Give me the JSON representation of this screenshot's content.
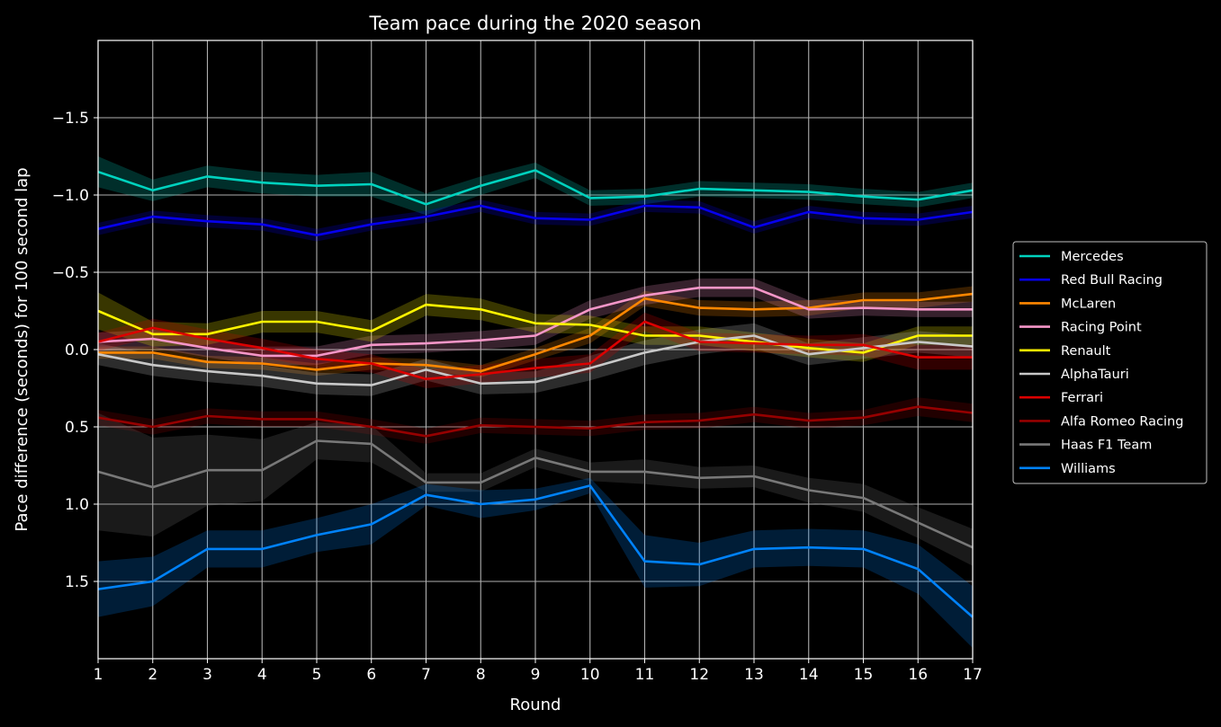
{
  "chart_data": {
    "type": "line",
    "title": "Team pace during the 2020 season",
    "xlabel": "Round",
    "ylabel": "Pace difference (seconds) for 100 second lap",
    "x": [
      1,
      2,
      3,
      4,
      5,
      6,
      7,
      8,
      9,
      10,
      11,
      12,
      13,
      14,
      15,
      16,
      17
    ],
    "xlim": [
      1,
      17
    ],
    "ylim": [
      2.0,
      -2.0
    ],
    "y_inverted": true,
    "yticks": [
      -1.5,
      -1.0,
      -0.5,
      0.0,
      0.5,
      1.0,
      1.5
    ],
    "ytick_labels": [
      "−1.5",
      "−1.0",
      "−0.5",
      "0.0",
      "0.5",
      "1.0",
      "1.5"
    ],
    "grid": true,
    "legend_position": "right",
    "background": "#000000",
    "series": [
      {
        "name": "Mercedes",
        "color": "#00D2BE",
        "values": [
          -1.15,
          -1.03,
          -1.12,
          -1.08,
          -1.06,
          -1.07,
          -0.94,
          -1.06,
          -1.16,
          -0.98,
          -0.99,
          -1.04,
          -1.03,
          -1.02,
          -0.99,
          -0.97,
          -1.03
        ],
        "band": [
          0.1,
          0.07,
          0.07,
          0.07,
          0.07,
          0.08,
          0.07,
          0.06,
          0.05,
          0.05,
          0.05,
          0.05,
          0.05,
          0.05,
          0.05,
          0.05,
          0.05
        ]
      },
      {
        "name": "Red Bull Racing",
        "color": "#0600EF",
        "values": [
          -0.78,
          -0.86,
          -0.83,
          -0.81,
          -0.74,
          -0.81,
          -0.86,
          -0.93,
          -0.85,
          -0.84,
          -0.93,
          -0.92,
          -0.79,
          -0.89,
          -0.85,
          -0.84,
          -0.89
        ],
        "band": [
          0.04,
          0.04,
          0.04,
          0.04,
          0.04,
          0.04,
          0.04,
          0.04,
          0.04,
          0.04,
          0.04,
          0.04,
          0.04,
          0.04,
          0.04,
          0.04,
          0.04
        ]
      },
      {
        "name": "McLaren",
        "color": "#FF8700",
        "values": [
          0.02,
          0.02,
          0.08,
          0.09,
          0.13,
          0.09,
          0.1,
          0.14,
          0.03,
          -0.09,
          -0.33,
          -0.27,
          -0.26,
          -0.27,
          -0.32,
          -0.32,
          -0.36
        ],
        "band": [
          0.04,
          0.04,
          0.04,
          0.04,
          0.04,
          0.04,
          0.04,
          0.04,
          0.04,
          0.05,
          0.05,
          0.05,
          0.05,
          0.05,
          0.05,
          0.05,
          0.05
        ]
      },
      {
        "name": "Racing Point",
        "color": "#F596C8",
        "values": [
          -0.05,
          -0.07,
          -0.01,
          0.04,
          0.04,
          -0.03,
          -0.04,
          -0.06,
          -0.09,
          -0.26,
          -0.35,
          -0.4,
          -0.4,
          -0.26,
          -0.27,
          -0.26,
          -0.26
        ],
        "band": [
          0.06,
          0.06,
          0.06,
          0.06,
          0.06,
          0.06,
          0.06,
          0.06,
          0.06,
          0.06,
          0.06,
          0.06,
          0.06,
          0.06,
          0.05,
          0.05,
          0.05
        ]
      },
      {
        "name": "Renault",
        "color": "#FFF500",
        "values": [
          -0.25,
          -0.1,
          -0.1,
          -0.18,
          -0.18,
          -0.12,
          -0.29,
          -0.26,
          -0.17,
          -0.16,
          -0.09,
          -0.09,
          -0.05,
          -0.01,
          0.02,
          -0.09,
          -0.09
        ],
        "band": [
          0.12,
          0.08,
          0.07,
          0.07,
          0.07,
          0.07,
          0.07,
          0.07,
          0.06,
          0.06,
          0.06,
          0.06,
          0.06,
          0.06,
          0.06,
          0.06,
          0.06
        ]
      },
      {
        "name": "AlphaTauri",
        "color": "#C8C8C8",
        "values": [
          0.03,
          0.1,
          0.14,
          0.17,
          0.22,
          0.23,
          0.13,
          0.22,
          0.21,
          0.12,
          0.02,
          -0.05,
          -0.09,
          0.03,
          -0.01,
          -0.05,
          -0.02
        ],
        "band": [
          0.07,
          0.07,
          0.07,
          0.07,
          0.07,
          0.07,
          0.07,
          0.07,
          0.07,
          0.08,
          0.08,
          0.08,
          0.08,
          0.07,
          0.07,
          0.07,
          0.07
        ]
      },
      {
        "name": "Ferrari",
        "color": "#DC0000",
        "values": [
          -0.05,
          -0.14,
          -0.07,
          -0.01,
          0.06,
          0.09,
          0.19,
          0.16,
          0.12,
          0.09,
          -0.18,
          -0.05,
          -0.04,
          -0.03,
          -0.03,
          0.05,
          0.05
        ],
        "band": [
          0.06,
          0.06,
          0.06,
          0.06,
          0.06,
          0.06,
          0.06,
          0.06,
          0.06,
          0.06,
          0.06,
          0.06,
          0.06,
          0.06,
          0.07,
          0.08,
          0.08
        ]
      },
      {
        "name": "Alfa Romeo Racing",
        "color": "#960000",
        "values": [
          0.44,
          0.5,
          0.43,
          0.45,
          0.45,
          0.5,
          0.56,
          0.49,
          0.5,
          0.51,
          0.47,
          0.46,
          0.42,
          0.46,
          0.44,
          0.37,
          0.41
        ],
        "band": [
          0.05,
          0.05,
          0.05,
          0.05,
          0.05,
          0.05,
          0.05,
          0.05,
          0.05,
          0.05,
          0.05,
          0.05,
          0.05,
          0.05,
          0.05,
          0.06,
          0.06
        ]
      },
      {
        "name": "Haas F1 Team",
        "color": "#787878",
        "values": [
          0.79,
          0.89,
          0.78,
          0.78,
          0.59,
          0.61,
          0.86,
          0.86,
          0.7,
          0.79,
          0.79,
          0.83,
          0.82,
          0.91,
          0.96,
          1.12,
          1.28
        ],
        "band": [
          0.38,
          0.32,
          0.23,
          0.2,
          0.12,
          0.12,
          0.06,
          0.06,
          0.06,
          0.06,
          0.08,
          0.07,
          0.07,
          0.08,
          0.09,
          0.1,
          0.12
        ]
      },
      {
        "name": "Williams",
        "color": "#0082FA",
        "values": [
          1.55,
          1.5,
          1.29,
          1.29,
          1.2,
          1.13,
          0.94,
          1.0,
          0.97,
          0.88,
          1.37,
          1.39,
          1.29,
          1.28,
          1.29,
          1.42,
          1.73
        ],
        "band": [
          0.18,
          0.16,
          0.12,
          0.12,
          0.11,
          0.13,
          0.07,
          0.09,
          0.07,
          0.05,
          0.17,
          0.14,
          0.12,
          0.12,
          0.12,
          0.16,
          0.2
        ]
      }
    ]
  }
}
